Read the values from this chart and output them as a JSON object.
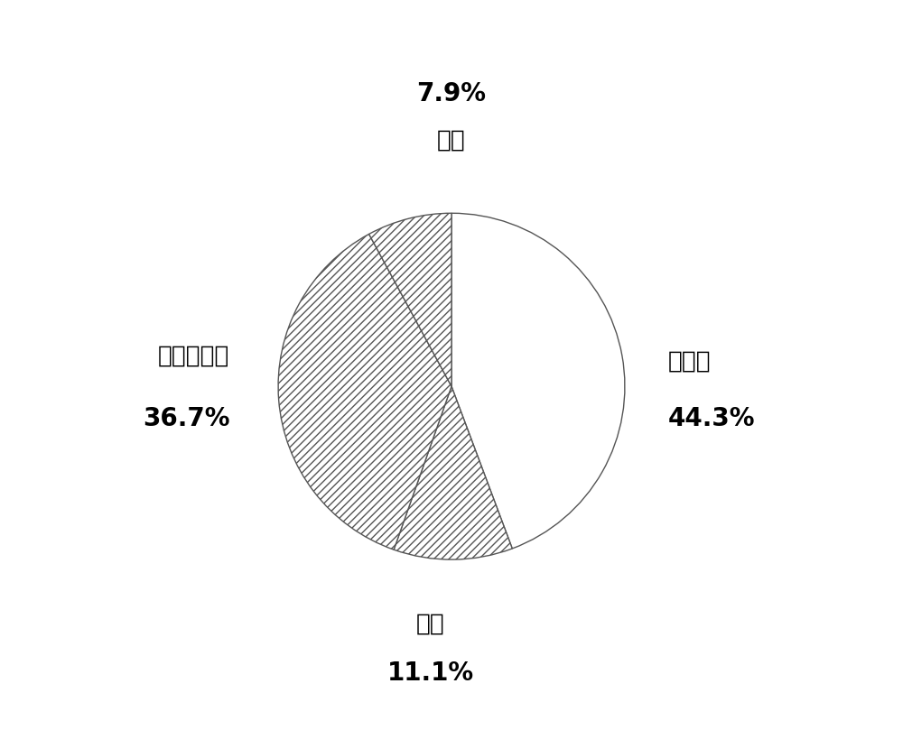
{
  "labels": [
    "蛋白质",
    "油脂",
    "碳水化合物",
    "其他"
  ],
  "percentages": [
    "44.3%",
    "11.1%",
    "36.7%",
    "7.9%"
  ],
  "values": [
    44.3,
    11.1,
    36.7,
    7.9
  ],
  "colors": [
    "#ffffff",
    "#ffffff",
    "#ffffff",
    "#ffffff"
  ],
  "hatches": [
    "",
    "////",
    "////",
    "////"
  ],
  "edgecolor": "#555555",
  "startangle": 90,
  "figsize": [
    10.0,
    8.2
  ],
  "dpi": 100,
  "label_fontsize": 19,
  "pct_fontsize": 20
}
